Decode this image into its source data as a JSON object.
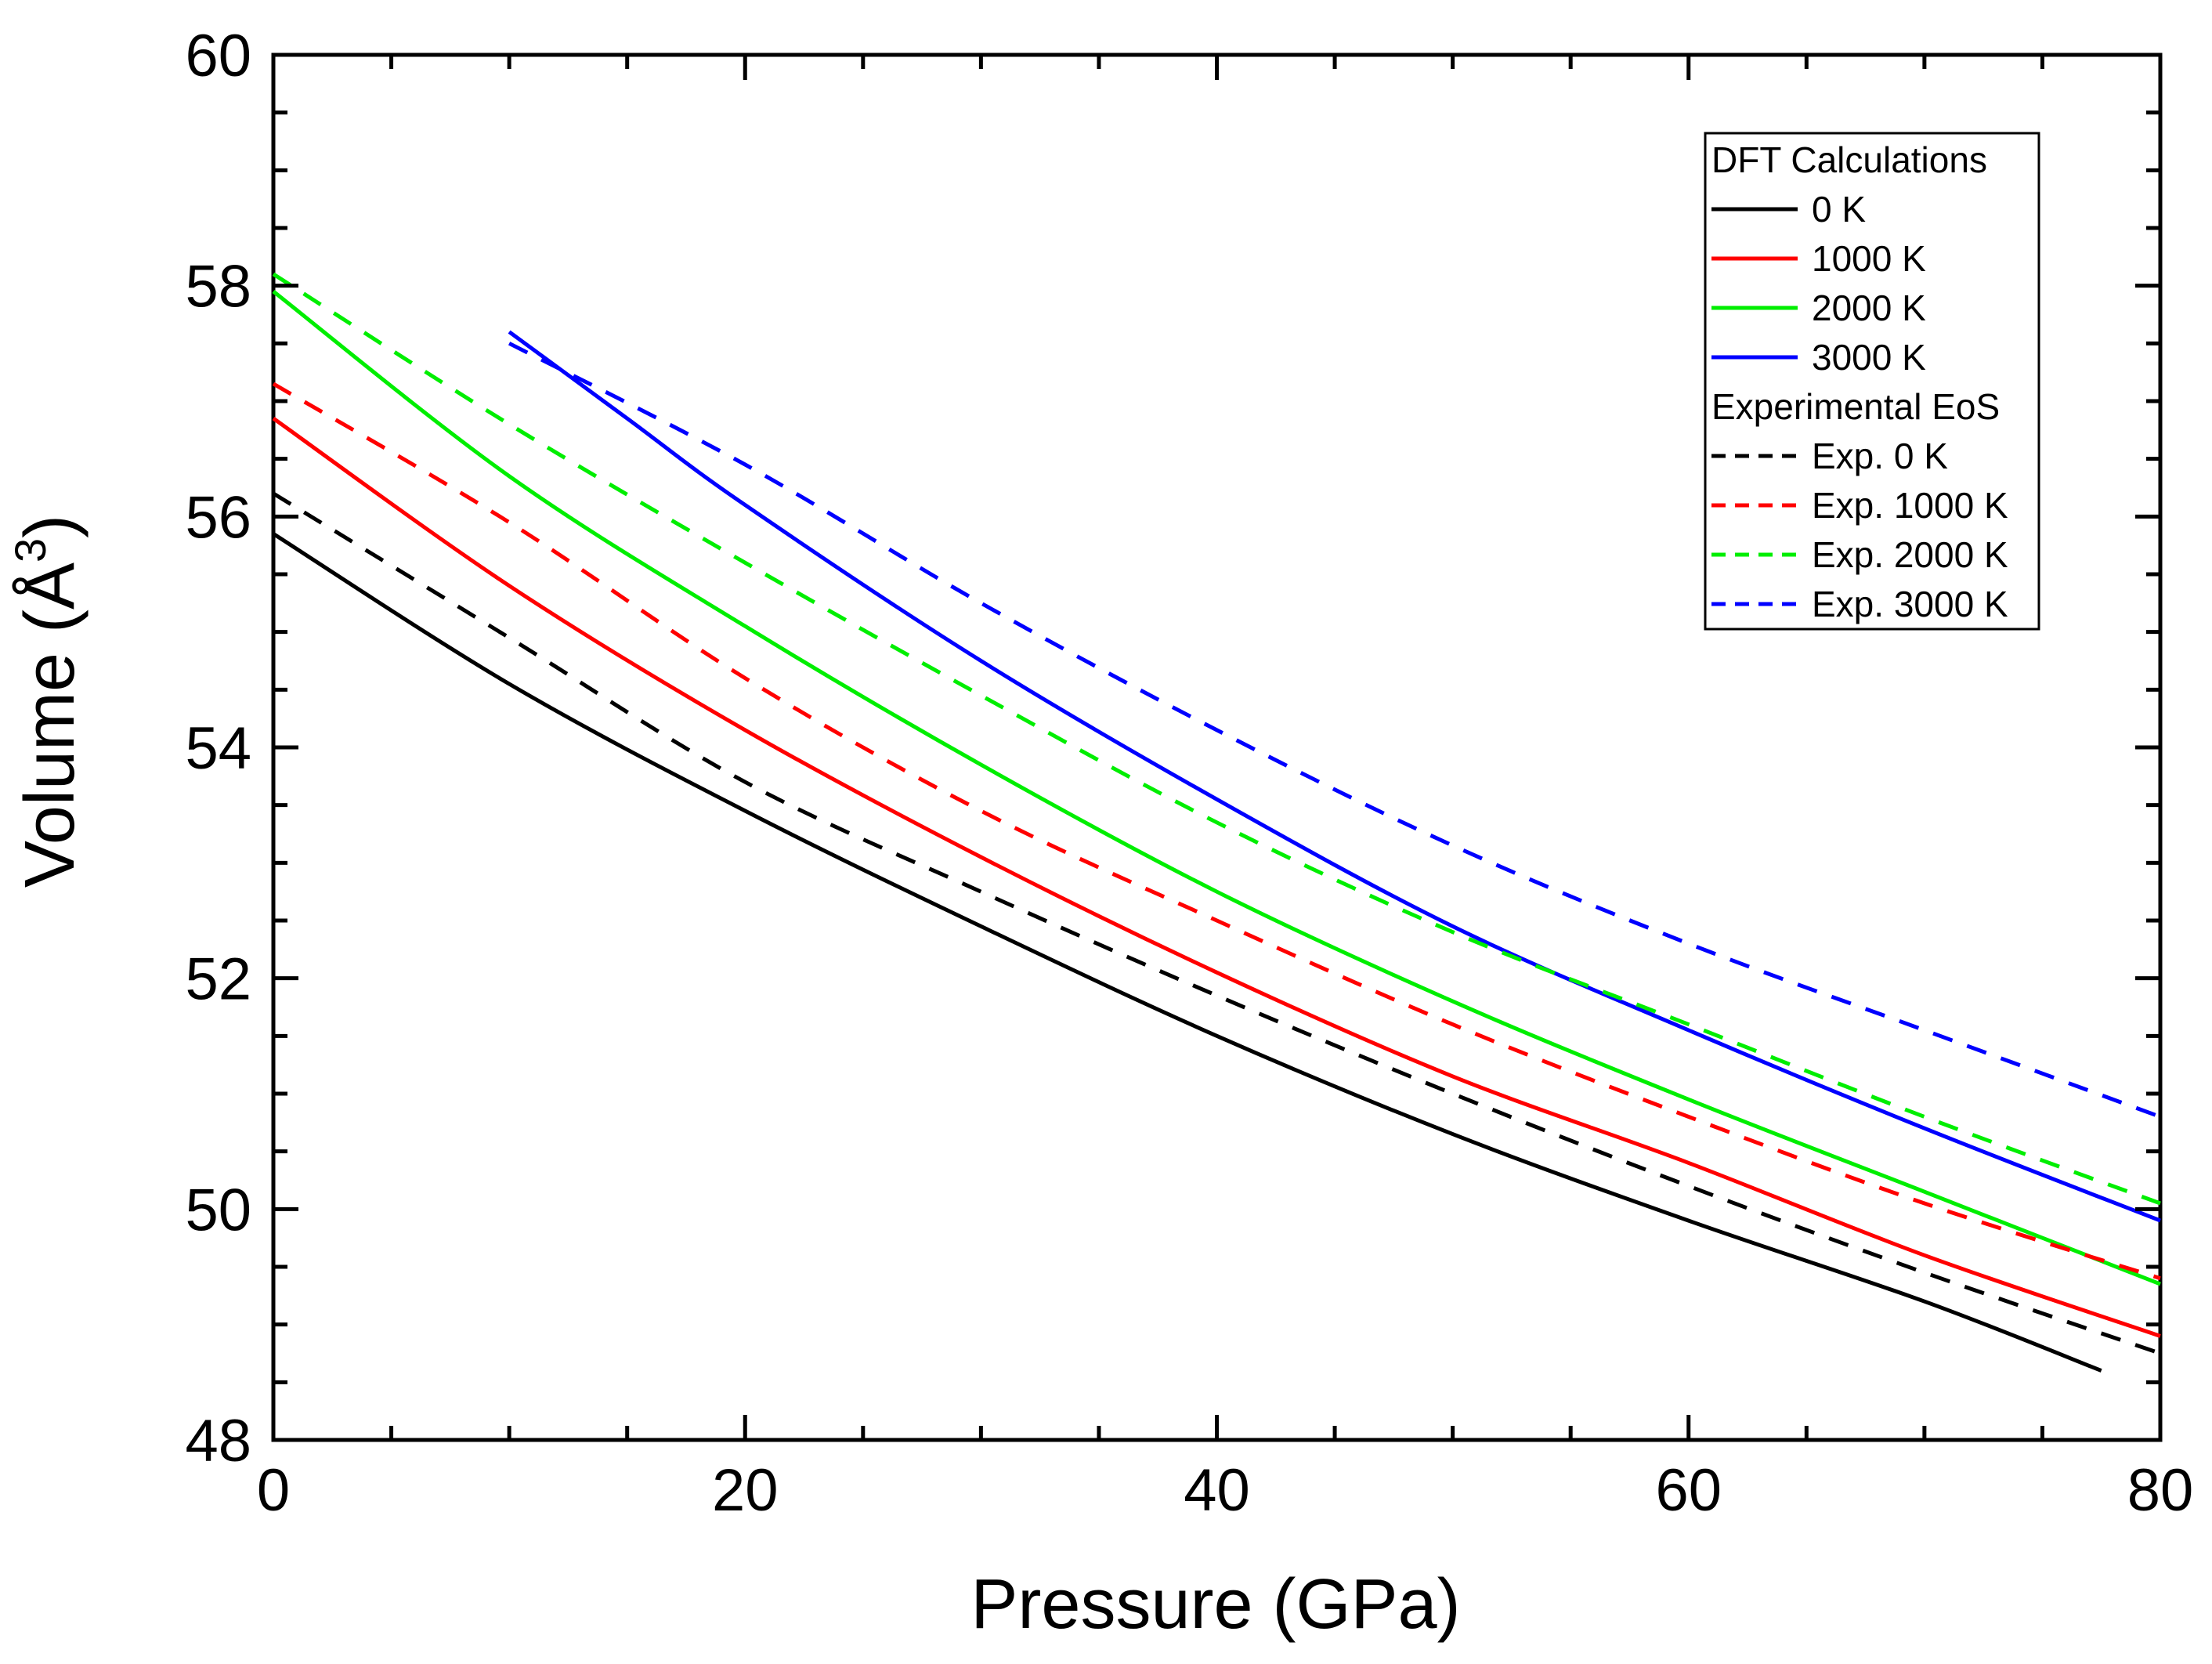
{
  "chart_data": {
    "type": "line",
    "xlabel": "Pressure (GPa)",
    "ylabel_main": "Volume (Å",
    "ylabel_sup": "3",
    "ylabel_close": ")",
    "xlim": [
      0,
      80
    ],
    "ylim": [
      48,
      60
    ],
    "x_ticks": [
      "0",
      "20",
      "40",
      "60",
      "80"
    ],
    "y_ticks": [
      "48",
      "50",
      "52",
      "54",
      "56",
      "58",
      "60"
    ],
    "grid": false,
    "legend": {
      "placement": "top-right",
      "group1_title": "DFT Calculations",
      "group2_title": "Experimental EoS"
    },
    "series": [
      {
        "name": "0 K",
        "group": "dft",
        "color": "#000000",
        "dash": false,
        "x": [
          0,
          10,
          20,
          30,
          40,
          50,
          60,
          70,
          77.5
        ],
        "y": [
          55.85,
          54.55,
          53.45,
          52.45,
          51.5,
          50.65,
          49.9,
          49.2,
          48.6
        ]
      },
      {
        "name": "1000 K",
        "group": "dft",
        "color": "#ff0000",
        "dash": false,
        "x": [
          0,
          10,
          20,
          30,
          40,
          50,
          60,
          70,
          80
        ],
        "y": [
          56.85,
          55.4,
          54.15,
          53.05,
          52.05,
          51.15,
          50.4,
          49.6,
          48.9
        ]
      },
      {
        "name": "2000 K",
        "group": "dft",
        "color": "#00ee00",
        "dash": false,
        "x": [
          0,
          10,
          20,
          30,
          40,
          50,
          60,
          70,
          80
        ],
        "y": [
          57.95,
          56.35,
          55.05,
          53.85,
          52.75,
          51.8,
          50.95,
          50.15,
          49.35
        ]
      },
      {
        "name": "3000 K",
        "group": "dft",
        "color": "#0000ff",
        "dash": false,
        "x": [
          10,
          15,
          20,
          30,
          40,
          50,
          60,
          70,
          80
        ],
        "y": [
          57.6,
          56.85,
          56.1,
          54.75,
          53.55,
          52.45,
          51.55,
          50.7,
          49.9
        ]
      },
      {
        "name": "Exp. 0 K",
        "group": "exp",
        "color": "#000000",
        "dash": true,
        "x": [
          0,
          10,
          20,
          30,
          40,
          50,
          60,
          70,
          80
        ],
        "y": [
          56.2,
          54.95,
          53.7,
          52.75,
          51.85,
          51.0,
          50.2,
          49.45,
          48.75
        ]
      },
      {
        "name": "Exp. 1000 K",
        "group": "exp",
        "color": "#ff0000",
        "dash": true,
        "x": [
          0,
          10,
          20,
          30,
          40,
          50,
          60,
          70,
          80
        ],
        "y": [
          57.15,
          55.95,
          54.6,
          53.45,
          52.5,
          51.6,
          50.8,
          50.05,
          49.4
        ]
      },
      {
        "name": "Exp. 2000 K",
        "group": "exp",
        "color": "#00ee00",
        "dash": true,
        "x": [
          0,
          10,
          20,
          30,
          40,
          50,
          60,
          70,
          80
        ],
        "y": [
          58.1,
          56.8,
          55.6,
          54.45,
          53.35,
          52.4,
          51.6,
          50.8,
          50.05
        ]
      },
      {
        "name": "Exp. 3000 K",
        "group": "exp",
        "color": "#0000ff",
        "dash": true,
        "x": [
          10,
          20,
          30,
          40,
          50,
          60,
          70,
          80
        ],
        "y": [
          57.5,
          56.45,
          55.25,
          54.15,
          53.15,
          52.3,
          51.55,
          50.8
        ]
      }
    ]
  }
}
